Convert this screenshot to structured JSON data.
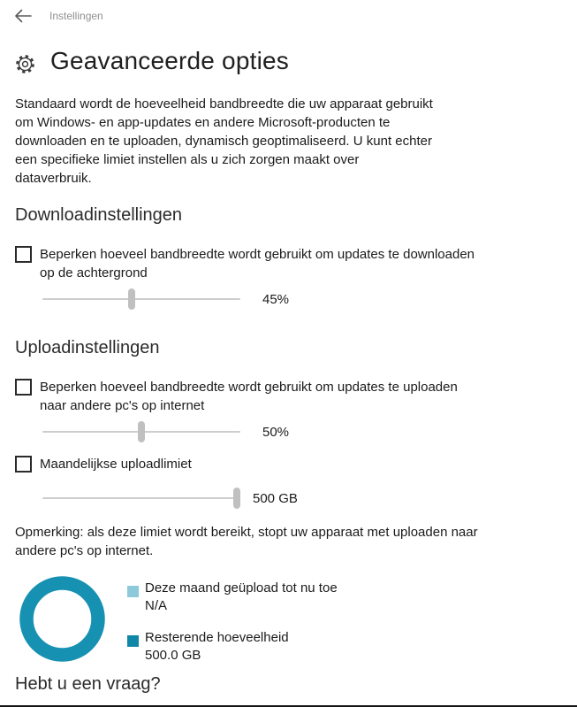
{
  "header": {
    "app_title": "Instellingen"
  },
  "page": {
    "title": "Geavanceerde opties"
  },
  "intro": "Standaard wordt de hoeveelheid bandbreedte die uw apparaat gebruikt om Windows- en app-updates en andere Microsoft-producten te downloaden en te uploaden, dynamisch geoptimaliseerd. U kunt echter een specifieke limiet instellen als u zich zorgen maakt over dataverbruik.",
  "download_section": {
    "heading": "Downloadinstellingen",
    "checkbox_label": "Beperken hoeveel bandbreedte wordt gebruikt om updates te downloaden op de achtergrond",
    "checkbox_checked": false,
    "slider_percent": 45,
    "slider_value_label": "45%"
  },
  "upload_section": {
    "heading": "Uploadinstellingen",
    "bandwidth_checkbox_label": "Beperken hoeveel bandbreedte wordt gebruikt om updates te uploaden naar andere pc's op internet",
    "bandwidth_checkbox_checked": false,
    "bandwidth_slider_percent": 50,
    "bandwidth_slider_value_label": "50%",
    "limit_checkbox_label": "Maandelijkse uploadlimiet",
    "limit_checkbox_checked": false,
    "limit_slider_percent": 100,
    "limit_slider_value_label": "500 GB",
    "note": "Opmerking: als deze limiet wordt bereikt, stopt uw apparaat met uploaden naar andere pc's op internet."
  },
  "chart_data": {
    "type": "pie",
    "donut": true,
    "title": "",
    "ring_color": "#1691b2",
    "slices": [
      {
        "label": "Deze maand geüpload tot nu toe",
        "value_label": "N/A",
        "value": 0,
        "color": "#8ec9db"
      },
      {
        "label": "Resterende hoeveelheid",
        "value_label": "500.0 GB",
        "value": 500.0,
        "color": "#1187a8"
      }
    ],
    "legend_position": "right"
  },
  "footer": {
    "heading": "Hebt u een vraag?"
  },
  "colors": {
    "accent_teal": "#1691b2",
    "disabled_slider_track": "#cdcdcd",
    "disabled_slider_thumb": "#c0c0c0",
    "muted_text": "#8f8f8f"
  }
}
